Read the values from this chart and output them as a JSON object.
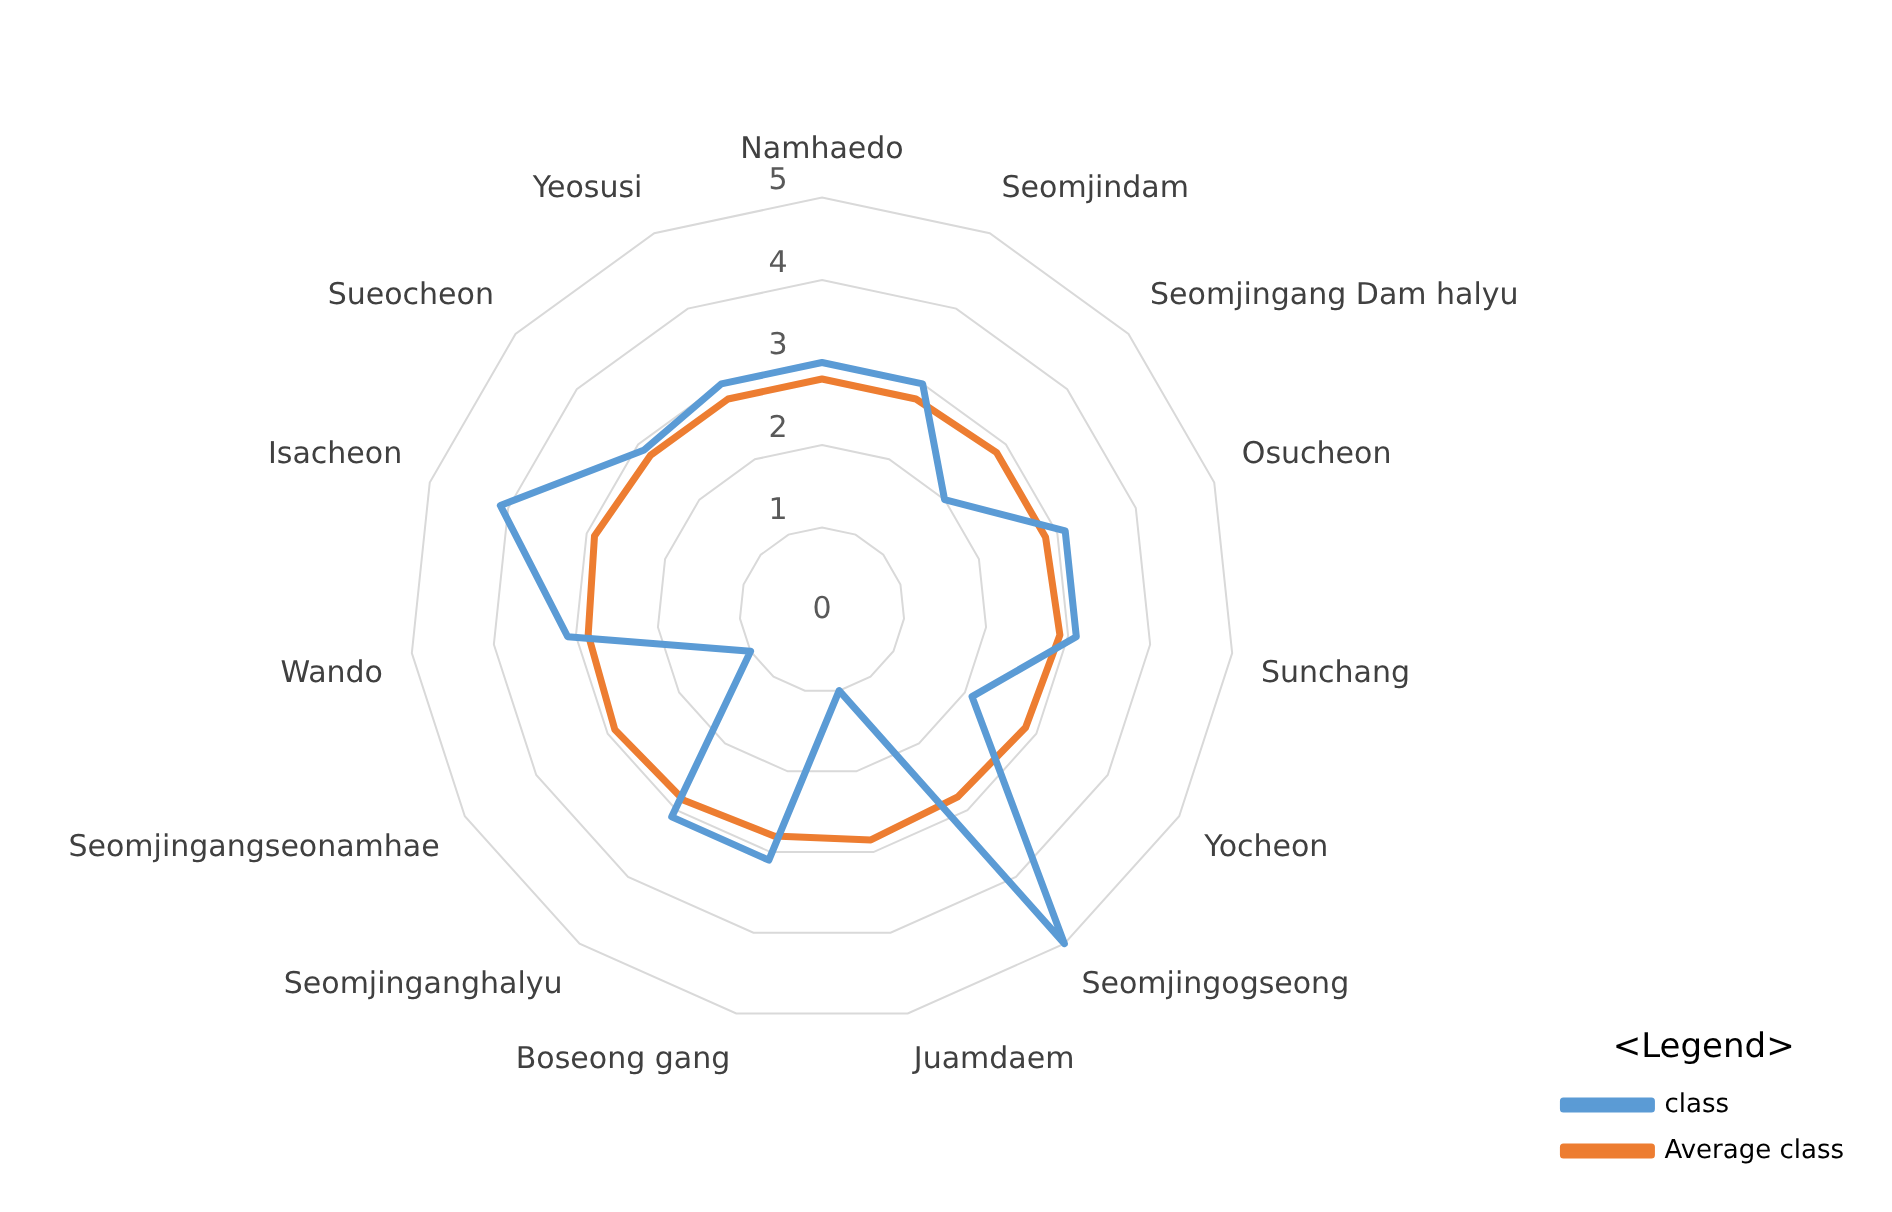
{
  "chart_data": {
    "type": "radar",
    "categories": [
      "Namhaedo",
      "Seomjindam",
      "Seomjingang Dam halyu",
      "Osucheon",
      "Sunchang",
      "Yocheon",
      "Seomjingogseong",
      "Juamdaem",
      "Boseong gang",
      "Seomjinganghalyu",
      "Seomjingangseonamhae",
      "Wando",
      "Isacheon",
      "Sueocheon",
      "Yeosusi"
    ],
    "series": [
      {
        "name": "class",
        "color": "#5b9bd5",
        "values": [
          3.0,
          3.0,
          2.0,
          3.1,
          3.1,
          2.1,
          5.0,
          1.0,
          3.1,
          3.1,
          1.0,
          3.1,
          4.1,
          2.9,
          3.0
        ]
      },
      {
        "name": "Average class",
        "color": "#ed7d31",
        "values": [
          2.8,
          2.8,
          2.85,
          2.85,
          2.9,
          2.85,
          2.8,
          2.85,
          2.8,
          2.85,
          2.9,
          2.85,
          2.9,
          2.8,
          2.8
        ]
      }
    ],
    "ylim": [
      0,
      5
    ],
    "yticks": [
      0,
      1,
      2,
      3,
      4,
      5
    ],
    "grid": true,
    "legend": "bottom right",
    "legend_title": "<Legend>",
    "marker": "none",
    "line_style": "solid"
  }
}
